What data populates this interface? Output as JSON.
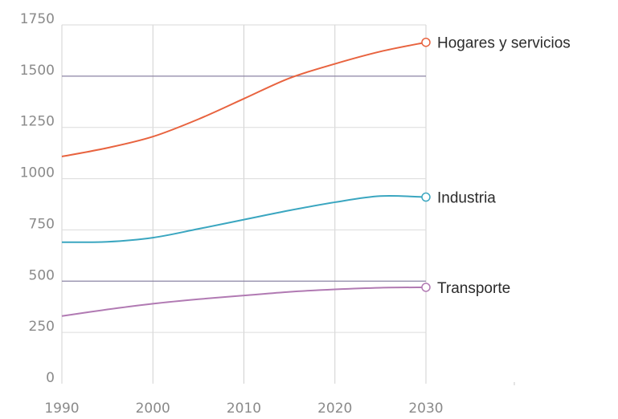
{
  "chart_data": {
    "type": "line",
    "x": [
      1990,
      1995,
      2000,
      2005,
      2010,
      2015,
      2020,
      2025,
      2030
    ],
    "xticks": [
      1990,
      2000,
      2010,
      2020,
      2030
    ],
    "yticks": [
      0,
      250,
      500,
      750,
      1000,
      1250,
      1500,
      1750
    ],
    "xlim": [
      1990,
      2030
    ],
    "ylim": [
      0,
      1750
    ],
    "grid": true,
    "series": [
      {
        "name": "Hogares y servicios",
        "color": "#e8633f",
        "values": [
          1108,
          1150,
          1205,
          1290,
          1390,
          1490,
          1560,
          1620,
          1665
        ]
      },
      {
        "name": "Industria",
        "color": "#3aa6c0",
        "values": [
          690,
          692,
          712,
          755,
          800,
          845,
          885,
          915,
          910
        ]
      },
      {
        "name": "Transporte",
        "color": "#b17ab3",
        "values": [
          330,
          362,
          390,
          412,
          430,
          448,
          460,
          468,
          470
        ]
      }
    ]
  }
}
